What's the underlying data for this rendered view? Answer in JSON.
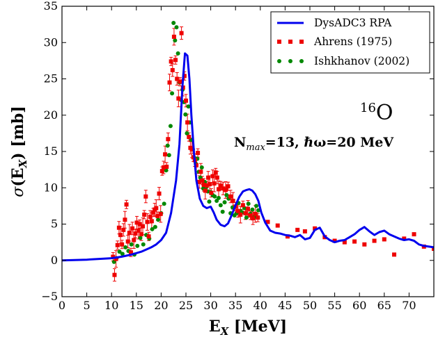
{
  "chart_data": {
    "type": "line",
    "title": "",
    "xlabel": "E_X [MeV]",
    "ylabel": "σ(E_X) [mb]",
    "xlim": [
      0,
      75
    ],
    "ylim": [
      -5,
      35
    ],
    "xticks": [
      0,
      5,
      10,
      15,
      20,
      25,
      30,
      35,
      40,
      45,
      50,
      55,
      60,
      65,
      70
    ],
    "yticks": [
      -5,
      0,
      5,
      10,
      15,
      20,
      25,
      30,
      35
    ],
    "grid": false,
    "legend_position": "top-right",
    "annotations": {
      "nucleus_mass": "16",
      "nucleus_symbol": "O",
      "params": "N",
      "params_sub": "max",
      "params_rest": "=13, ℏω=20 MeV"
    },
    "series": [
      {
        "name": "DysADC3 RPA",
        "kind": "line",
        "color": "#0000ee",
        "x": [
          0,
          5,
          10,
          12,
          14,
          16,
          17,
          18,
          19,
          20,
          21,
          22,
          23,
          23.7,
          24.3,
          24.8,
          25.3,
          25.7,
          26.1,
          26.6,
          27.1,
          27.8,
          28.5,
          29.2,
          30,
          30.6,
          31.2,
          32,
          32.8,
          33.5,
          34.2,
          35,
          35.8,
          36.5,
          37.2,
          37.8,
          38.4,
          39,
          39.6,
          40.2,
          41,
          42,
          43,
          44,
          45,
          46,
          47,
          48,
          49,
          50,
          51,
          52,
          53,
          54,
          55,
          56,
          57,
          58,
          59,
          60,
          61,
          62,
          63,
          64,
          65,
          66,
          67,
          68,
          69,
          70,
          71,
          72,
          73,
          74,
          75
        ],
        "y": [
          0,
          0.1,
          0.3,
          0.5,
          0.8,
          1.2,
          1.5,
          1.8,
          2.2,
          2.8,
          3.8,
          6.5,
          11,
          16,
          24,
          28.5,
          28.2,
          25,
          20,
          15,
          11,
          8.5,
          7.5,
          7.2,
          7.4,
          6.6,
          5.6,
          4.9,
          4.7,
          5.1,
          6.2,
          7.6,
          8.8,
          9.5,
          9.7,
          9.8,
          9.6,
          9.1,
          8.2,
          6.6,
          5.2,
          4.1,
          3.8,
          3.7,
          3.5,
          3.4,
          3.2,
          3.5,
          2.9,
          3.1,
          4.2,
          4.5,
          3.3,
          2.8,
          2.5,
          2.7,
          2.8,
          3.2,
          3.6,
          4.2,
          4.6,
          4.0,
          3.5,
          3.9,
          4.1,
          3.6,
          3.3,
          3.0,
          2.8,
          2.9,
          2.7,
          2.2,
          2.0,
          1.9,
          1.8
        ]
      },
      {
        "name": "Ahrens (1975)",
        "kind": "scatter",
        "marker": "square",
        "color": "#ee0000",
        "error_bars": true,
        "x": [
          10.3,
          10.6,
          10.9,
          11.2,
          11.5,
          11.8,
          12.1,
          12.4,
          12.7,
          13.0,
          13.3,
          13.6,
          13.9,
          14.2,
          14.5,
          14.8,
          15.1,
          15.4,
          15.7,
          16.0,
          16.3,
          16.6,
          16.9,
          17.2,
          17.5,
          17.8,
          18.1,
          18.4,
          18.7,
          19.0,
          19.3,
          19.6,
          19.9,
          20.2,
          20.5,
          20.8,
          21.1,
          21.4,
          21.7,
          22.0,
          22.3,
          22.6,
          22.9,
          23.2,
          23.5,
          23.8,
          24.1,
          24.4,
          24.7,
          25.0,
          25.3,
          25.6,
          25.9,
          26.2,
          26.5,
          26.8,
          27.1,
          27.4,
          27.7,
          28.0,
          28.3,
          28.6,
          28.9,
          29.2,
          29.5,
          29.8,
          30.1,
          30.4,
          30.7,
          31.0,
          31.3,
          31.6,
          32.0,
          32.5,
          33.0,
          33.5,
          34.0,
          34.5,
          35.0,
          35.5,
          36.0,
          36.5,
          37.0,
          37.5,
          38.0,
          38.5,
          39.0,
          39.5,
          41.5,
          43.5,
          45.5,
          47.5,
          49.0,
          51.0,
          53.0,
          55.0,
          57.0,
          59.0,
          61.0,
          63.0,
          65.0,
          67.0,
          69.0,
          71.0,
          73.0,
          75.0
        ],
        "y": [
          0.5,
          -2.0,
          0.2,
          2.1,
          4.5,
          3.5,
          2.2,
          4.2,
          5.6,
          7.7,
          2.6,
          3.8,
          1.1,
          4.4,
          2.8,
          3.7,
          5.2,
          4.1,
          5.0,
          3.6,
          4.7,
          6.3,
          8.8,
          5.3,
          3.3,
          6.0,
          5.4,
          6.6,
          7.0,
          7.2,
          6.1,
          9.2,
          6.4,
          12.3,
          12.8,
          14.6,
          12.9,
          16.7,
          24.5,
          27.4,
          26.2,
          30.8,
          27.6,
          25.0,
          22.3,
          24.6,
          31.3,
          23.8,
          25.4,
          22.0,
          19.0,
          17.0,
          15.5,
          15.3,
          14.2,
          13.8,
          13.1,
          14.8,
          10.8,
          12.2,
          11.0,
          10.4,
          9.6,
          10.3,
          11.4,
          10.5,
          9.3,
          11.6,
          10.6,
          12.1,
          11.4,
          9.8,
          10.3,
          9.9,
          9.7,
          10.2,
          8.8,
          8.2,
          7.4,
          6.8,
          6.3,
          7.6,
          6.5,
          7.1,
          6.2,
          5.8,
          6.4,
          5.9,
          5.3,
          4.8,
          3.3,
          4.2,
          4.0,
          4.4,
          3.2,
          2.7,
          2.5,
          2.6,
          2.2,
          2.7,
          2.9,
          0.8,
          3.0,
          3.6,
          1.9,
          1.6
        ]
      },
      {
        "name": "Ishkhanov (2002)",
        "kind": "scatter",
        "marker": "circle",
        "color": "#008800",
        "x": [
          10.5,
          11.0,
          11.6,
          12.2,
          12.8,
          13.4,
          14.0,
          14.6,
          15.2,
          15.8,
          16.4,
          17.0,
          17.6,
          18.2,
          18.8,
          19.4,
          20.0,
          20.6,
          21.0,
          21.3,
          21.6,
          21.9,
          22.2,
          22.5,
          22.8,
          23.1,
          23.4,
          23.7,
          24.0,
          24.3,
          24.6,
          24.9,
          25.2,
          25.5,
          25.8,
          26.1,
          26.4,
          26.7,
          27.0,
          27.3,
          27.6,
          27.9,
          28.2,
          28.5,
          28.8,
          29.1,
          29.4,
          29.7,
          30.0,
          30.4,
          30.8,
          31.2,
          31.6,
          32.0,
          32.4,
          32.8,
          33.2,
          33.6,
          34.0,
          34.4,
          34.8,
          35.2,
          35.6,
          36.0,
          36.4,
          36.8,
          37.2,
          37.6,
          38.0,
          38.4,
          38.8,
          39.2,
          39.6
        ],
        "y": [
          -0.2,
          0.3,
          1.2,
          0.9,
          1.8,
          1.3,
          2.2,
          0.8,
          2.0,
          3.1,
          2.2,
          3.5,
          3.0,
          4.3,
          4.6,
          5.6,
          6.5,
          7.8,
          12.4,
          15.8,
          14.5,
          18.5,
          23.0,
          32.7,
          30.3,
          32.1,
          28.5,
          24.5,
          22.1,
          23.5,
          21.8,
          20.1,
          17.5,
          21.2,
          19.0,
          16.6,
          15.3,
          14.1,
          13.3,
          14.0,
          12.2,
          11.4,
          12.8,
          9.9,
          10.8,
          10.1,
          9.5,
          8.1,
          9.4,
          9.0,
          8.8,
          8.2,
          8.6,
          7.6,
          6.7,
          8.0,
          9.0,
          8.5,
          6.5,
          7.3,
          6.2,
          6.5,
          7.9,
          6.8,
          6.6,
          7.2,
          5.9,
          7.8,
          6.4,
          7.0,
          6.0,
          7.5,
          6.9
        ]
      }
    ]
  }
}
